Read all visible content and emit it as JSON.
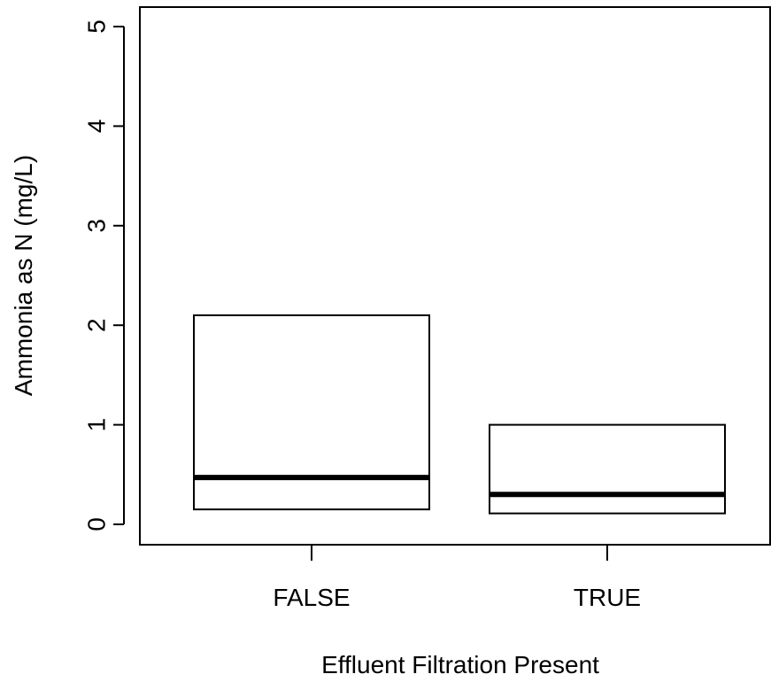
{
  "chart_data": {
    "type": "box",
    "title": "",
    "xlabel": "Effluent Filtration Present",
    "ylabel": "Ammonia as N (mg/L)",
    "categories": [
      "FALSE",
      "TRUE"
    ],
    "ylim": [
      0,
      5
    ],
    "yticks": [
      0,
      1,
      2,
      3,
      4,
      5
    ],
    "grid": false,
    "legend": "none",
    "boxes": [
      {
        "category": "FALSE",
        "q1": 0.15,
        "median": 0.47,
        "q3": 2.1
      },
      {
        "category": "TRUE",
        "q1": 0.11,
        "median": 0.3,
        "q3": 1.0
      }
    ],
    "colors": {
      "box_fill": "#ffffff",
      "stroke": "#000000"
    }
  }
}
